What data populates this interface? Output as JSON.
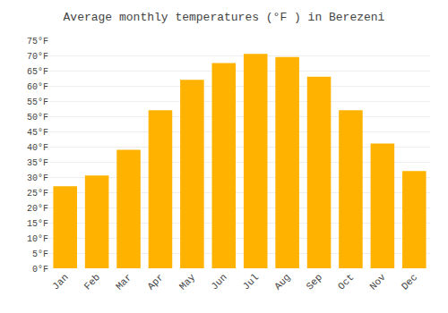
{
  "chart_data": {
    "type": "bar",
    "title": "Average monthly temperatures (°F ) in Berezeni",
    "categories": [
      "Jan",
      "Feb",
      "Mar",
      "Apr",
      "May",
      "Jun",
      "Jul",
      "Aug",
      "Sep",
      "Oct",
      "Nov",
      "Dec"
    ],
    "values": [
      27,
      30.5,
      39,
      52,
      62,
      67.5,
      70.5,
      69.5,
      63,
      52,
      41,
      32
    ],
    "color": "#FFB300",
    "ylim": [
      0,
      75
    ],
    "yticks": [
      {
        "value": 0,
        "label": "0°F"
      },
      {
        "value": 5,
        "label": "5°F"
      },
      {
        "value": 10,
        "label": "10°F"
      },
      {
        "value": 15,
        "label": "15°F"
      },
      {
        "value": 20,
        "label": "20°F"
      },
      {
        "value": 25,
        "label": "25°F"
      },
      {
        "value": 30,
        "label": "30°F"
      },
      {
        "value": 35,
        "label": "35°F"
      },
      {
        "value": 40,
        "label": "40°F"
      },
      {
        "value": 45,
        "label": "45°F"
      },
      {
        "value": 50,
        "label": "50°F"
      },
      {
        "value": 55,
        "label": "55°F"
      },
      {
        "value": 60,
        "label": "60°F"
      },
      {
        "value": 65,
        "label": "65°F"
      },
      {
        "value": 70,
        "label": "70°F"
      },
      {
        "value": 75,
        "label": "75°F"
      }
    ],
    "grid": true
  }
}
